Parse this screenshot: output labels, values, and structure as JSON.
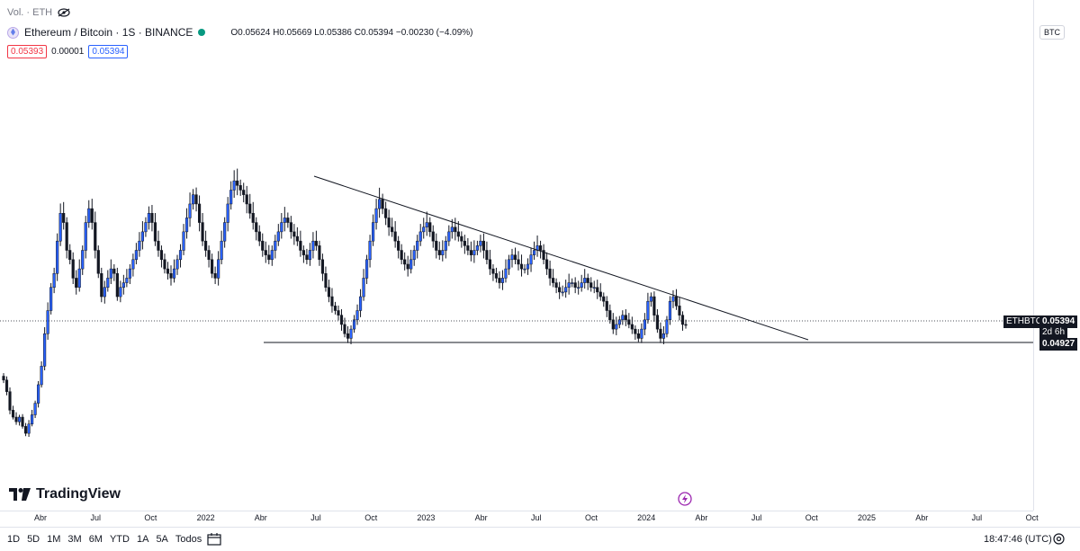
{
  "header": {
    "vol_label": "Vol. · ETH",
    "symbol_title": "Ethereum / Bitcoin · 1S · BINANCE",
    "ohlc": "O0.05624 H0.05669 L0.05386 C0.05394 −0.00230 (−4.09%)",
    "bid": "0.05393",
    "spread": "0.00001",
    "ask": "0.05394"
  },
  "currency_button": "BTC",
  "colors": {
    "up": "#2962ff",
    "down": "#131722",
    "sell_box": "#f23645",
    "buy_box": "#2962ff"
  },
  "tags": {
    "symbol": "ETHBTC",
    "price": "0.05394",
    "countdown": "2d 6h",
    "support": "0.04927"
  },
  "brand": "TradingView",
  "ranges": [
    "1D",
    "5D",
    "1M",
    "3M",
    "6M",
    "YTD",
    "1A",
    "5A",
    "Todos"
  ],
  "clock": "18:47:46 (UTC)",
  "chart_data": {
    "type": "candlestick",
    "ylim": [
      0.015,
      0.112
    ],
    "y_ticks": [
      "0.11000",
      "0.10500",
      "0.10000",
      "0.09500",
      "0.09000",
      "0.08500",
      "0.08000",
      "0.07500",
      "0.07000",
      "0.06500",
      "0.06000",
      "0.05500",
      "0.05000",
      "0.04500",
      "0.04000",
      "0.03500",
      "0.03000",
      "0.02500",
      "0.02000",
      "0.01500"
    ],
    "x_ticks": [
      "Abr",
      "Jul",
      "Oct",
      "2022",
      "Abr",
      "Jul",
      "Oct",
      "2023",
      "Abr",
      "Jul",
      "Oct",
      "2024",
      "Abr",
      "Jul",
      "Oct",
      "2025",
      "Abr",
      "Jul",
      "Oct"
    ],
    "weekly_close": [
      0.042,
      0.0395,
      0.0355,
      0.034,
      0.033,
      0.034,
      0.032,
      0.0305,
      0.0325,
      0.0345,
      0.037,
      0.041,
      0.045,
      0.052,
      0.057,
      0.062,
      0.065,
      0.072,
      0.078,
      0.076,
      0.07,
      0.068,
      0.064,
      0.062,
      0.066,
      0.07,
      0.076,
      0.079,
      0.076,
      0.07,
      0.065,
      0.06,
      0.062,
      0.064,
      0.066,
      0.065,
      0.06,
      0.062,
      0.063,
      0.064,
      0.066,
      0.068,
      0.07,
      0.072,
      0.074,
      0.076,
      0.078,
      0.076,
      0.072,
      0.07,
      0.068,
      0.066,
      0.065,
      0.064,
      0.066,
      0.068,
      0.07,
      0.074,
      0.077,
      0.08,
      0.082,
      0.08,
      0.076,
      0.072,
      0.07,
      0.068,
      0.065,
      0.064,
      0.068,
      0.072,
      0.076,
      0.08,
      0.083,
      0.085,
      0.084,
      0.083,
      0.082,
      0.08,
      0.078,
      0.076,
      0.074,
      0.072,
      0.07,
      0.069,
      0.068,
      0.07,
      0.072,
      0.074,
      0.076,
      0.077,
      0.076,
      0.074,
      0.073,
      0.072,
      0.07,
      0.069,
      0.068,
      0.07,
      0.072,
      0.071,
      0.068,
      0.065,
      0.062,
      0.06,
      0.058,
      0.057,
      0.056,
      0.054,
      0.052,
      0.051,
      0.053,
      0.055,
      0.057,
      0.06,
      0.064,
      0.068,
      0.072,
      0.076,
      0.079,
      0.081,
      0.079,
      0.077,
      0.075,
      0.074,
      0.072,
      0.07,
      0.068,
      0.067,
      0.066,
      0.068,
      0.07,
      0.072,
      0.074,
      0.075,
      0.076,
      0.074,
      0.072,
      0.07,
      0.069,
      0.07,
      0.072,
      0.074,
      0.075,
      0.074,
      0.073,
      0.072,
      0.071,
      0.07,
      0.069,
      0.07,
      0.071,
      0.072,
      0.07,
      0.068,
      0.066,
      0.065,
      0.064,
      0.063,
      0.064,
      0.066,
      0.068,
      0.069,
      0.068,
      0.067,
      0.066,
      0.066,
      0.067,
      0.069,
      0.07,
      0.071,
      0.07,
      0.068,
      0.066,
      0.064,
      0.063,
      0.062,
      0.061,
      0.061,
      0.062,
      0.063,
      0.063,
      0.062,
      0.062,
      0.063,
      0.064,
      0.063,
      0.062,
      0.062,
      0.061,
      0.06,
      0.059,
      0.057,
      0.055,
      0.053,
      0.054,
      0.055,
      0.056,
      0.055,
      0.054,
      0.053,
      0.052,
      0.051,
      0.053,
      0.055,
      0.059,
      0.06,
      0.056,
      0.053,
      0.051,
      0.052,
      0.055,
      0.059,
      0.06,
      0.058,
      0.056,
      0.054,
      0.0539
    ]
  }
}
